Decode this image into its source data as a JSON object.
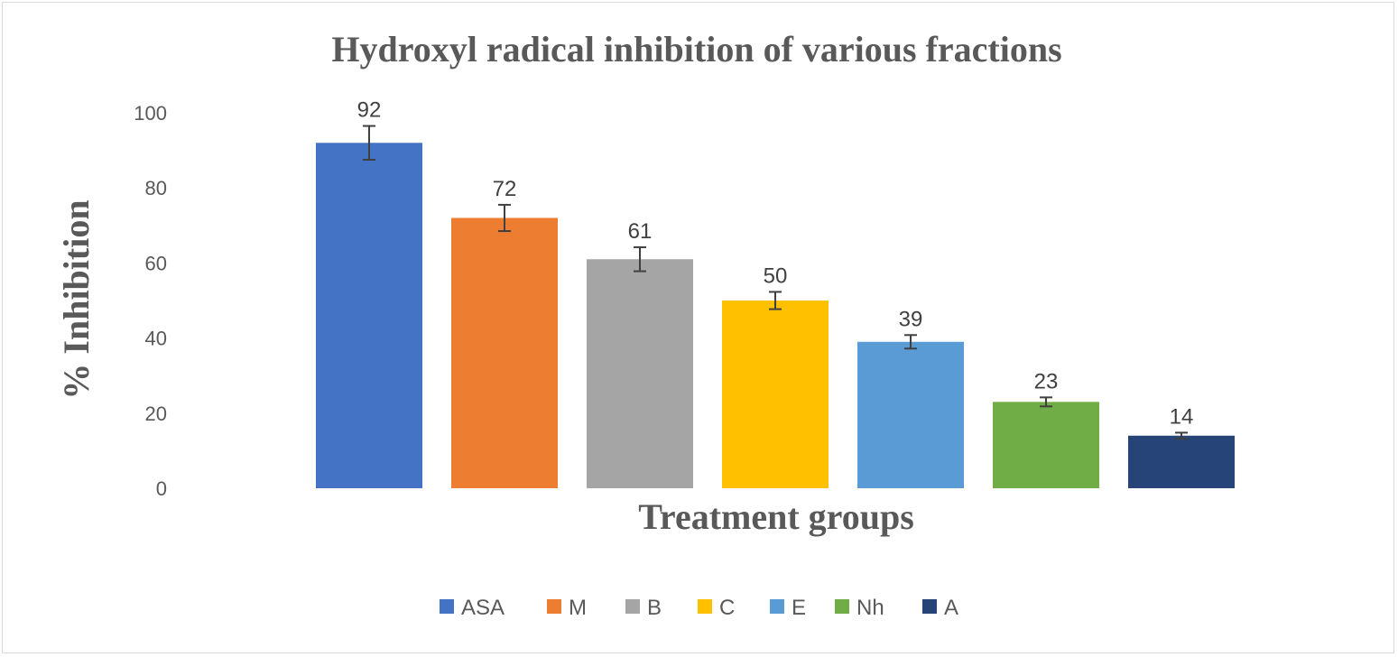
{
  "chart_data": {
    "type": "bar",
    "title": "Hydroxyl radical inhibition of various fractions",
    "xlabel": "Treatment groups",
    "ylabel": "% Inhibition",
    "ylim": [
      0,
      100
    ],
    "yticks": [
      "0",
      "20",
      "40",
      "60",
      "80",
      "100"
    ],
    "grid": false,
    "legend_position": "bottom",
    "categories": [
      "ASA",
      "M",
      "B",
      "C",
      "E",
      "Nh",
      "A"
    ],
    "values": [
      92,
      72,
      61,
      50,
      39,
      23,
      14
    ],
    "data_labels": [
      "92",
      "72",
      "61",
      "50",
      "39",
      "23",
      "14"
    ],
    "errors": [
      4.5,
      3.5,
      3.2,
      2.3,
      1.8,
      1.2,
      0.8
    ],
    "colors": [
      "#4472C4",
      "#ED7D31",
      "#A5A5A5",
      "#FFC000",
      "#5B9BD5",
      "#70AD47",
      "#264478"
    ]
  }
}
